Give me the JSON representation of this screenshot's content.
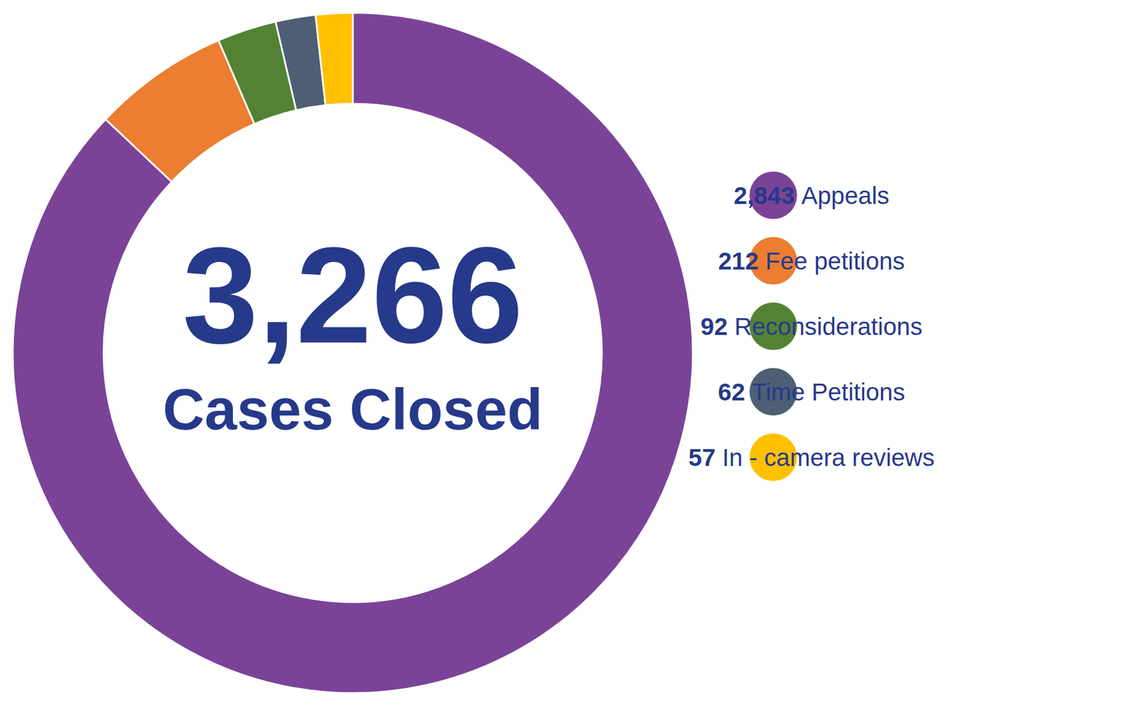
{
  "chart_data": {
    "type": "donut",
    "categories": [
      "Appeals",
      "Fee petitions",
      "Reconsiderations",
      "Time Petitions",
      "In - camera reviews"
    ],
    "values": [
      2843,
      212,
      92,
      62,
      57
    ],
    "value_labels": [
      "2,843",
      "212",
      "92",
      "62",
      "57"
    ],
    "colors": [
      "#7b4397",
      "#ed7d31",
      "#548235",
      "#4e5f75",
      "#ffc000"
    ],
    "legend": "right",
    "data_labels": false,
    "center_value": {
      "value": 3266,
      "label": "3,266"
    },
    "center_label": "Cases Closed"
  }
}
